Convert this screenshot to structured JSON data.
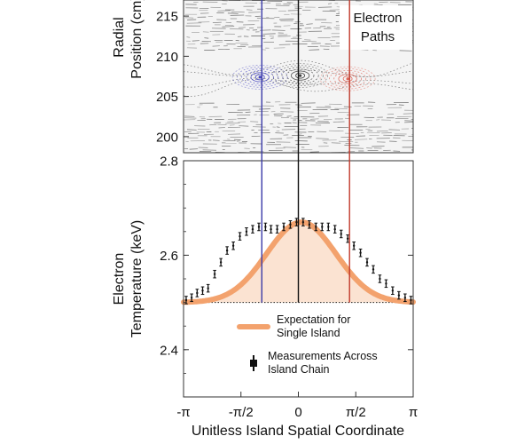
{
  "chart_data": [
    {
      "type": "scatter",
      "panel": "poincare",
      "ylabel_lines": [
        "Radial",
        "Position (cm)"
      ],
      "ylim": [
        198,
        217
      ],
      "xlim": [
        -3.14159,
        3.14159
      ],
      "y_ticks": [
        200,
        205,
        210,
        215
      ],
      "y_tick_labels": [
        "200",
        "205",
        "210",
        "215"
      ],
      "annotation_lines": [
        "Electron",
        "Paths"
      ],
      "islands": [
        {
          "x": -1.05,
          "y": 207.4,
          "color": "#4a4ac0"
        },
        {
          "x": 0.05,
          "y": 207.6,
          "color": "#444444"
        },
        {
          "x": 1.35,
          "y": 207.2,
          "color": "#e0675a"
        }
      ]
    },
    {
      "type": "line",
      "panel": "temperature",
      "ylabel_lines": [
        "Electron",
        "Temperature (keV)"
      ],
      "xlabel": "Unitless Island Spatial Coordinate",
      "xlim": [
        -3.14159,
        3.14159
      ],
      "ylim": [
        2.3,
        2.8
      ],
      "x_ticks": [
        -3.14159,
        -1.5708,
        0,
        1.5708,
        3.14159
      ],
      "x_tick_labels": [
        "-π",
        "-π/2",
        "0",
        "π/2",
        "π"
      ],
      "y_ticks": [
        2.4,
        2.6,
        2.8
      ],
      "y_tick_labels": [
        "2.4",
        "2.6",
        "2.8"
      ],
      "baseline": 2.5,
      "series": [
        {
          "name": "Expectation for Single Island",
          "kind": "gaussian-line",
          "color": "#f3a26d",
          "fill": "#fbe3d2",
          "peak": 2.67,
          "center": 0.08,
          "width": 0.95
        },
        {
          "name": "Measurements Across Island Chain",
          "kind": "errorbar",
          "color": "#111111",
          "points": [
            {
              "x": -3.07,
              "y": 2.505,
              "err": 0.008
            },
            {
              "x": -2.92,
              "y": 2.51,
              "err": 0.008
            },
            {
              "x": -2.77,
              "y": 2.52,
              "err": 0.008
            },
            {
              "x": -2.62,
              "y": 2.525,
              "err": 0.008
            },
            {
              "x": -2.47,
              "y": 2.53,
              "err": 0.008
            },
            {
              "x": -2.29,
              "y": 2.56,
              "err": 0.008
            },
            {
              "x": -2.12,
              "y": 2.585,
              "err": 0.008
            },
            {
              "x": -1.95,
              "y": 2.61,
              "err": 0.008
            },
            {
              "x": -1.78,
              "y": 2.62,
              "err": 0.008
            },
            {
              "x": -1.6,
              "y": 2.64,
              "err": 0.008
            },
            {
              "x": -1.42,
              "y": 2.65,
              "err": 0.008
            },
            {
              "x": -1.25,
              "y": 2.655,
              "err": 0.008
            },
            {
              "x": -1.08,
              "y": 2.66,
              "err": 0.008
            },
            {
              "x": -0.9,
              "y": 2.66,
              "err": 0.008
            },
            {
              "x": -0.75,
              "y": 2.655,
              "err": 0.008
            },
            {
              "x": -0.58,
              "y": 2.655,
              "err": 0.008
            },
            {
              "x": -0.4,
              "y": 2.66,
              "err": 0.008
            },
            {
              "x": -0.22,
              "y": 2.665,
              "err": 0.008
            },
            {
              "x": -0.05,
              "y": 2.67,
              "err": 0.008
            },
            {
              "x": 0.13,
              "y": 2.67,
              "err": 0.008
            },
            {
              "x": 0.3,
              "y": 2.665,
              "err": 0.008
            },
            {
              "x": 0.48,
              "y": 2.66,
              "err": 0.008
            },
            {
              "x": 0.65,
              "y": 2.66,
              "err": 0.008
            },
            {
              "x": 0.82,
              "y": 2.66,
              "err": 0.008
            },
            {
              "x": 1.0,
              "y": 2.655,
              "err": 0.008
            },
            {
              "x": 1.17,
              "y": 2.645,
              "err": 0.008
            },
            {
              "x": 1.35,
              "y": 2.635,
              "err": 0.008
            },
            {
              "x": 1.52,
              "y": 2.62,
              "err": 0.008
            },
            {
              "x": 1.7,
              "y": 2.605,
              "err": 0.008
            },
            {
              "x": 1.88,
              "y": 2.585,
              "err": 0.008
            },
            {
              "x": 2.05,
              "y": 2.57,
              "err": 0.008
            },
            {
              "x": 2.23,
              "y": 2.55,
              "err": 0.008
            },
            {
              "x": 2.4,
              "y": 2.54,
              "err": 0.008
            },
            {
              "x": 2.58,
              "y": 2.525,
              "err": 0.008
            },
            {
              "x": 2.75,
              "y": 2.515,
              "err": 0.008
            },
            {
              "x": 2.92,
              "y": 2.51,
              "err": 0.008
            },
            {
              "x": 3.08,
              "y": 2.505,
              "err": 0.008
            }
          ]
        }
      ],
      "legend_entries": [
        {
          "lines": [
            "Expectation for",
            "Single Island"
          ],
          "symbol": "line",
          "color": "#f3a26d"
        },
        {
          "lines": [
            "Measurements Across",
            "Island Chain"
          ],
          "symbol": "errorbar",
          "color": "#111111"
        }
      ],
      "vertical_markers": [
        {
          "x": -1.0,
          "color": "#3a3aa8"
        },
        {
          "x": 0.0,
          "color": "#111111"
        },
        {
          "x": 1.4,
          "color": "#c0392b"
        }
      ]
    }
  ]
}
